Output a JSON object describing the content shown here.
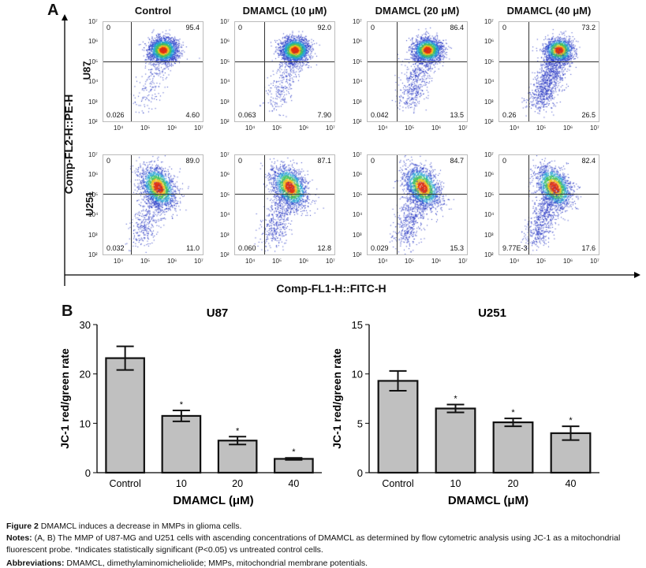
{
  "panelA": {
    "label": "A",
    "y_axis_label": "Comp-FL2-H::PE-H",
    "x_axis_label": "Comp-FL1-H::FITC-H",
    "columns": [
      "Control",
      "DMAMCL (10 μM)",
      "DMAMCL (20 μM)",
      "DMAMCL (40 μM)"
    ],
    "rows": [
      "U87",
      "U251"
    ],
    "y_ticks": [
      "10⁷",
      "10⁶",
      "10⁵",
      "10⁴",
      "10³",
      "10²"
    ],
    "x_ticks": [
      "10⁴",
      "10⁵",
      "10⁶",
      "10⁷"
    ],
    "quadrants": [
      [
        {
          "ul": "0",
          "ur": "95.4",
          "ll": "0.026",
          "lr": "4.60"
        },
        {
          "ul": "0",
          "ur": "92.0",
          "ll": "0.063",
          "lr": "7.90"
        },
        {
          "ul": "0",
          "ur": "86.4",
          "ll": "0.042",
          "lr": "13.5"
        },
        {
          "ul": "0",
          "ur": "73.2",
          "ll": "0.26",
          "lr": "26.5"
        }
      ],
      [
        {
          "ul": "0",
          "ur": "89.0",
          "ll": "0.032",
          "lr": "11.0"
        },
        {
          "ul": "0",
          "ur": "87.1",
          "ll": "0.060",
          "lr": "12.8"
        },
        {
          "ul": "0",
          "ur": "84.7",
          "ll": "0.029",
          "lr": "15.3"
        },
        {
          "ul": "0",
          "ur": "82.4",
          "ll": "9.77E-3",
          "lr": "17.6"
        }
      ]
    ]
  },
  "panelB": {
    "label": "B"
  },
  "chart_data": [
    {
      "type": "bar",
      "title": "U87",
      "categories": [
        "Control",
        "10",
        "20",
        "40"
      ],
      "values": [
        23.2,
        11.5,
        6.5,
        2.8
      ],
      "errors": [
        2.4,
        1.1,
        0.8,
        0.2
      ],
      "significance": [
        "",
        "*",
        "*",
        "*"
      ],
      "xlabel": "DMAMCL (μM)",
      "ylabel": "JC-1 red/green rate",
      "ylim": [
        0,
        30
      ],
      "yticks": [
        "0",
        "10",
        "20",
        "30"
      ],
      "bar_color": "#c0c0c0"
    },
    {
      "type": "bar",
      "title": "U251",
      "categories": [
        "Control",
        "10",
        "20",
        "40"
      ],
      "values": [
        9.3,
        6.5,
        5.1,
        4.0
      ],
      "errors": [
        1.0,
        0.4,
        0.4,
        0.7
      ],
      "significance": [
        "",
        "*",
        "*",
        "*"
      ],
      "xlabel": "DMAMCL (μM)",
      "ylabel": "JC-1 red/green rate",
      "ylim": [
        0,
        15
      ],
      "yticks": [
        "0",
        "5",
        "10",
        "15"
      ],
      "bar_color": "#c0c0c0"
    }
  ],
  "caption": {
    "fig_label": "Figure 2",
    "fig_text": " DMAMCL induces a decrease in MMPs in glioma cells.",
    "notes_label": "Notes:",
    "notes_text": " (A, B) The MMP of U87-MG and U251 cells with ascending concentrations of DMAMCL as determined by flow cytometric analysis using JC-1 as a mitochondrial fluorescent probe. *Indicates statistically significant (P<0.05) vs untreated control cells.",
    "abbr_label": "Abbreviations:",
    "abbr_text": " DMAMCL, dimethylaminomicheliolide; MMPs, mitochondrial membrane potentials."
  }
}
